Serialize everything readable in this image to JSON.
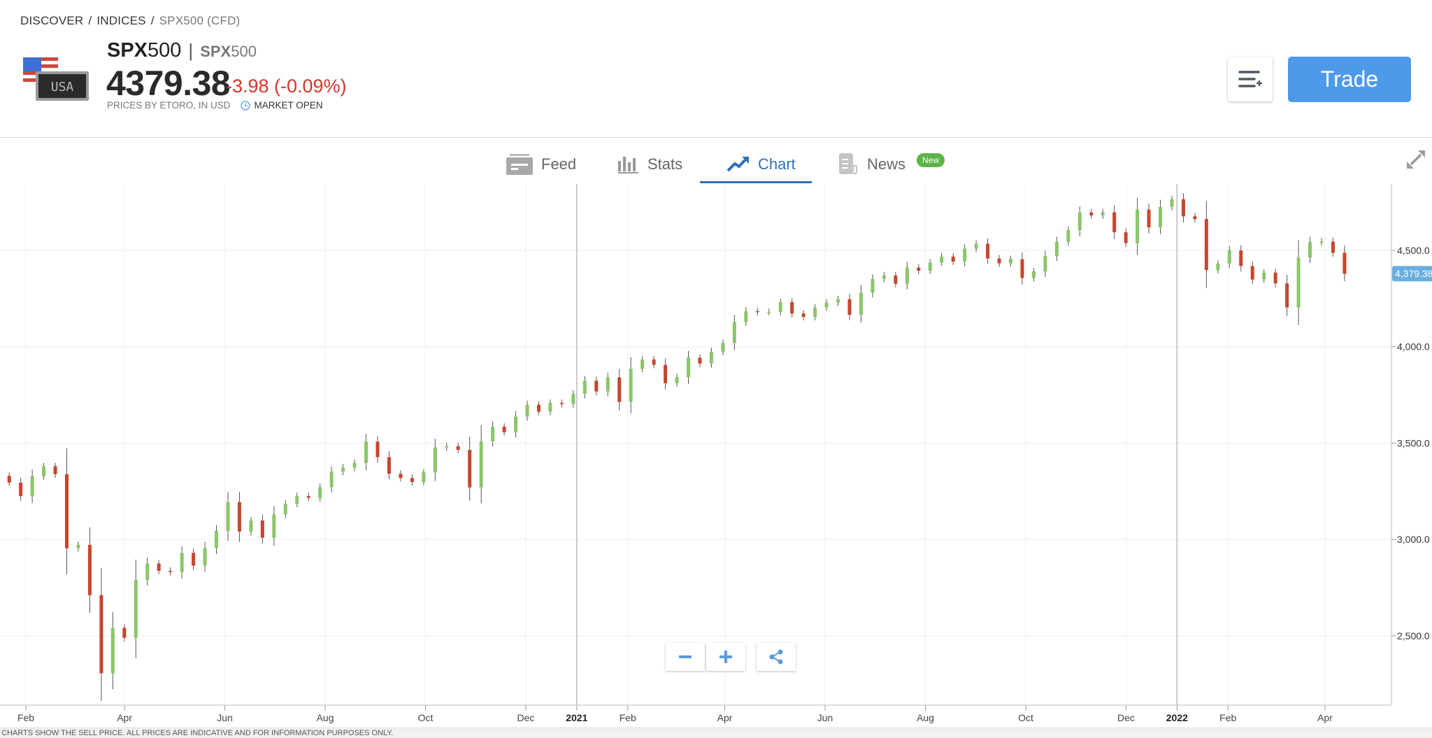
{
  "breadcrumb": [
    "DISCOVER",
    "INDICES",
    "SPX500 (CFD)"
  ],
  "instrument": {
    "symbol_bold": "SPX",
    "symbol_rest": "500",
    "separator": "|",
    "sub_bold": "SPX",
    "sub_rest": "500",
    "price": "4379.38",
    "change": "-3.98 (-0.09%)",
    "prices_by": "PRICES BY ETORO, IN USD",
    "market_status": "MARKET OPEN",
    "flag_label": "USA"
  },
  "actions": {
    "watchlist_icon": "list-plus-icon",
    "trade_label": "Trade"
  },
  "tabs": [
    {
      "label": "Feed",
      "icon": "feed-icon",
      "active": false
    },
    {
      "label": "Stats",
      "icon": "bar-chart-icon",
      "active": false
    },
    {
      "label": "Chart",
      "icon": "trend-up-icon",
      "active": true
    },
    {
      "label": "News",
      "icon": "news-icon",
      "active": false,
      "badge": "New"
    }
  ],
  "colors": {
    "accent": "#4f99ea",
    "up": "#8bc56a",
    "down": "#c8452e",
    "negative_change": "#d9342b",
    "badge": "#5bb545",
    "price_label": "#6aaee0"
  },
  "footer_text": "CHARTS SHOW THE SELL PRICE. ALL PRICES ARE INDICATIVE AND FOR INFORMATION PURPOSES ONLY.",
  "chart_data": {
    "type": "candlestick",
    "current_price_label": "4,379.38",
    "current_price": 4379.38,
    "ylim": [
      2140,
      4845
    ],
    "y_ticks": [
      {
        "value": 2500,
        "label": "2,500.0"
      },
      {
        "value": 3000,
        "label": "3,000.0"
      },
      {
        "value": 3500,
        "label": "3,500.0"
      },
      {
        "value": 4000,
        "label": "4,000.0"
      },
      {
        "value": 4500,
        "label": "4,500.0"
      }
    ],
    "x_ticks": [
      {
        "date": "2020-02-01",
        "label": "Feb"
      },
      {
        "date": "2020-04-01",
        "label": "Apr"
      },
      {
        "date": "2020-06-01",
        "label": "Jun"
      },
      {
        "date": "2020-08-01",
        "label": "Aug"
      },
      {
        "date": "2020-10-01",
        "label": "Oct"
      },
      {
        "date": "2020-12-01",
        "label": "Dec"
      },
      {
        "date": "2021-01-01",
        "label": "2021",
        "year": true
      },
      {
        "date": "2021-02-01",
        "label": "Feb"
      },
      {
        "date": "2021-04-01",
        "label": "Apr"
      },
      {
        "date": "2021-06-01",
        "label": "Jun"
      },
      {
        "date": "2021-08-01",
        "label": "Aug"
      },
      {
        "date": "2021-10-01",
        "label": "Oct"
      },
      {
        "date": "2021-12-01",
        "label": "Dec"
      },
      {
        "date": "2022-01-01",
        "label": "2022",
        "year": true
      },
      {
        "date": "2022-02-01",
        "label": "Feb"
      },
      {
        "date": "2022-04-01",
        "label": "Apr"
      }
    ],
    "start": {
      "date": "2020-01-10",
      "close": 3320
    },
    "weekly_closes": [
      [
        "2020-01-17",
        3330
      ],
      [
        "2020-01-24",
        3295
      ],
      [
        "2020-01-31",
        3225
      ],
      [
        "2020-02-07",
        3328
      ],
      [
        "2020-02-14",
        3380
      ],
      [
        "2020-02-21",
        3338
      ],
      [
        "2020-02-28",
        2954
      ],
      [
        "2020-03-06",
        2972
      ],
      [
        "2020-03-13",
        2711
      ],
      [
        "2020-03-20",
        2305
      ],
      [
        "2020-03-27",
        2541
      ],
      [
        "2020-04-03",
        2489
      ],
      [
        "2020-04-10",
        2790
      ],
      [
        "2020-04-17",
        2875
      ],
      [
        "2020-04-24",
        2837
      ],
      [
        "2020-05-01",
        2831
      ],
      [
        "2020-05-08",
        2930
      ],
      [
        "2020-05-15",
        2864
      ],
      [
        "2020-05-22",
        2955
      ],
      [
        "2020-05-29",
        3044
      ],
      [
        "2020-06-05",
        3194
      ],
      [
        "2020-06-12",
        3041
      ],
      [
        "2020-06-19",
        3098
      ],
      [
        "2020-06-26",
        3009
      ],
      [
        "2020-07-03",
        3130
      ],
      [
        "2020-07-10",
        3185
      ],
      [
        "2020-07-17",
        3225
      ],
      [
        "2020-07-24",
        3216
      ],
      [
        "2020-07-31",
        3271
      ],
      [
        "2020-08-07",
        3351
      ],
      [
        "2020-08-14",
        3373
      ],
      [
        "2020-08-21",
        3397
      ],
      [
        "2020-08-28",
        3508
      ],
      [
        "2020-09-04",
        3427
      ],
      [
        "2020-09-11",
        3341
      ],
      [
        "2020-09-18",
        3319
      ],
      [
        "2020-09-25",
        3298
      ],
      [
        "2020-10-02",
        3348
      ],
      [
        "2020-10-09",
        3477
      ],
      [
        "2020-10-16",
        3484
      ],
      [
        "2020-10-23",
        3465
      ],
      [
        "2020-10-30",
        3270
      ],
      [
        "2020-11-06",
        3509
      ],
      [
        "2020-11-13",
        3585
      ],
      [
        "2020-11-20",
        3557
      ],
      [
        "2020-11-27",
        3638
      ],
      [
        "2020-12-04",
        3699
      ],
      [
        "2020-12-11",
        3663
      ],
      [
        "2020-12-18",
        3709
      ],
      [
        "2020-12-25",
        3703
      ],
      [
        "2021-01-01",
        3756
      ],
      [
        "2021-01-08",
        3824
      ],
      [
        "2021-01-15",
        3768
      ],
      [
        "2021-01-22",
        3841
      ],
      [
        "2021-01-29",
        3714
      ],
      [
        "2021-02-05",
        3886
      ],
      [
        "2021-02-12",
        3934
      ],
      [
        "2021-02-19",
        3906
      ],
      [
        "2021-02-26",
        3811
      ],
      [
        "2021-03-05",
        3842
      ],
      [
        "2021-03-12",
        3943
      ],
      [
        "2021-03-19",
        3913
      ],
      [
        "2021-03-26",
        3974
      ],
      [
        "2021-04-02",
        4020
      ],
      [
        "2021-04-09",
        4128
      ],
      [
        "2021-04-16",
        4185
      ],
      [
        "2021-04-23",
        4180
      ],
      [
        "2021-04-30",
        4181
      ],
      [
        "2021-05-07",
        4232
      ],
      [
        "2021-05-14",
        4173
      ],
      [
        "2021-05-21",
        4155
      ],
      [
        "2021-05-28",
        4204
      ],
      [
        "2021-06-04",
        4229
      ],
      [
        "2021-06-11",
        4247
      ],
      [
        "2021-06-18",
        4166
      ],
      [
        "2021-06-25",
        4281
      ],
      [
        "2021-07-02",
        4352
      ],
      [
        "2021-07-09",
        4370
      ],
      [
        "2021-07-16",
        4327
      ],
      [
        "2021-07-23",
        4411
      ],
      [
        "2021-07-30",
        4395
      ],
      [
        "2021-08-06",
        4437
      ],
      [
        "2021-08-13",
        4468
      ],
      [
        "2021-08-20",
        4442
      ],
      [
        "2021-08-27",
        4509
      ],
      [
        "2021-09-03",
        4535
      ],
      [
        "2021-09-10",
        4458
      ],
      [
        "2021-09-17",
        4433
      ],
      [
        "2021-09-24",
        4455
      ],
      [
        "2021-10-01",
        4357
      ],
      [
        "2021-10-08",
        4391
      ],
      [
        "2021-10-15",
        4471
      ],
      [
        "2021-10-22",
        4545
      ],
      [
        "2021-10-29",
        4605
      ],
      [
        "2021-11-05",
        4697
      ],
      [
        "2021-11-12",
        4682
      ],
      [
        "2021-11-19",
        4698
      ],
      [
        "2021-11-26",
        4595
      ],
      [
        "2021-12-03",
        4538
      ],
      [
        "2021-12-10",
        4712
      ],
      [
        "2021-12-17",
        4620
      ],
      [
        "2021-12-24",
        4726
      ],
      [
        "2021-12-31",
        4766
      ],
      [
        "2022-01-07",
        4677
      ],
      [
        "2022-01-14",
        4663
      ],
      [
        "2022-01-21",
        4398
      ],
      [
        "2022-01-28",
        4432
      ],
      [
        "2022-02-04",
        4500
      ],
      [
        "2022-02-11",
        4419
      ],
      [
        "2022-02-18",
        4349
      ],
      [
        "2022-02-25",
        4385
      ],
      [
        "2022-03-04",
        4329
      ],
      [
        "2022-03-11",
        4204
      ],
      [
        "2022-03-18",
        4463
      ],
      [
        "2022-03-25",
        4543
      ],
      [
        "2022-04-01",
        4546
      ],
      [
        "2022-04-08",
        4488
      ],
      [
        "2022-04-15",
        4379
      ]
    ]
  }
}
